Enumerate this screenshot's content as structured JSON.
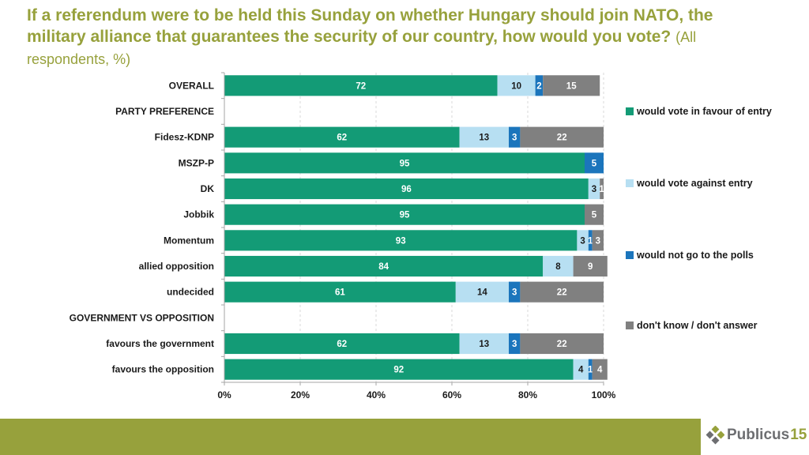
{
  "title": {
    "main": "If a referendum were to be held this Sunday on whether Hungary should join NATO, the military alliance that guarantees the security of our country, how would you vote?",
    "sub": "(All respondents, %)"
  },
  "colors": {
    "favour": "#139b76",
    "against": "#b7dff2",
    "not_go": "#1b75bc",
    "dont_know": "#808080",
    "brand": "#97a13c"
  },
  "logo": {
    "text": "Publicus",
    "number": "15"
  },
  "chart_data": {
    "type": "bar",
    "orientation": "horizontal",
    "stacked": "percent",
    "title": "If a referendum were to be held this Sunday on whether Hungary should join NATO, the military alliance that guarantees the security of our country, how would you vote? (All respondents, %)",
    "xlabel": "",
    "ylabel": "",
    "xlim": [
      0,
      100
    ],
    "x_ticks": [
      "0%",
      "20%",
      "40%",
      "60%",
      "80%",
      "100%"
    ],
    "grid": true,
    "legend_position": "right",
    "categories": [
      "OVERALL",
      "PARTY PREFERENCE",
      "Fidesz-KDNP",
      "MSZP-P",
      "DK",
      "Jobbik",
      "Momentum",
      "allied opposition",
      "undecided",
      "GOVERNMENT VS OPPOSITION",
      "favours the government",
      "favours the opposition"
    ],
    "series": [
      {
        "name": "would vote in favour of entry",
        "values": [
          72,
          null,
          62,
          95,
          96,
          95,
          93,
          84,
          61,
          null,
          62,
          92
        ]
      },
      {
        "name": "would vote against entry",
        "values": [
          10,
          null,
          13,
          null,
          3,
          null,
          3,
          8,
          14,
          null,
          13,
          4
        ]
      },
      {
        "name": "would not go to the polls",
        "values": [
          2,
          null,
          3,
          5,
          null,
          null,
          1,
          null,
          3,
          null,
          3,
          1
        ]
      },
      {
        "name": "don't know / don't answer",
        "values": [
          15,
          null,
          22,
          null,
          1,
          5,
          3,
          9,
          22,
          null,
          22,
          4
        ]
      }
    ]
  }
}
